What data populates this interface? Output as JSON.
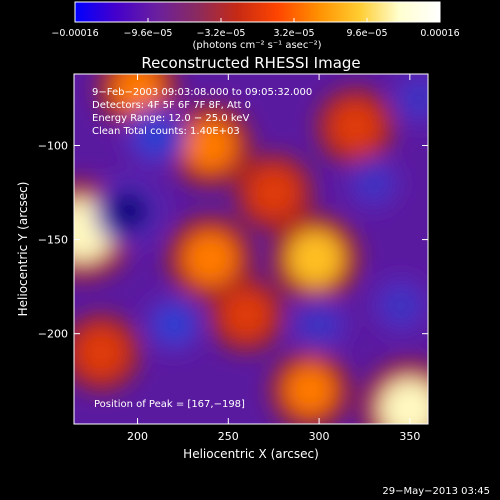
{
  "chart_data": {
    "type": "heatmap",
    "title": "Reconstructed RHESSI Image",
    "xlabel": "Heliocentric X (arcsec)",
    "ylabel": "Heliocentric Y (arcsec)",
    "xlim": [
      165,
      360
    ],
    "ylim": [
      -248,
      -62
    ],
    "x_ticks": [
      {
        "value": 200,
        "label": "200"
      },
      {
        "value": 250,
        "label": "250"
      },
      {
        "value": 300,
        "label": "300"
      },
      {
        "value": 350,
        "label": "350"
      }
    ],
    "y_ticks": [
      {
        "value": -100,
        "label": "−100"
      },
      {
        "value": -150,
        "label": "−150"
      },
      {
        "value": -200,
        "label": "−200"
      }
    ],
    "colorbar": {
      "range": [
        -0.00016,
        0.00016
      ],
      "ticks": [
        {
          "value": -0.00016,
          "label": "−0.00016"
        },
        {
          "value": -9.6e-05,
          "label": "−9.6e−05"
        },
        {
          "value": -3.2e-05,
          "label": "−3.2e−05"
        },
        {
          "value": 3.2e-05,
          "label": "3.2e−05"
        },
        {
          "value": 9.6e-05,
          "label": "9.6e−05"
        },
        {
          "value": 0.00016,
          "label": "0.00016"
        }
      ],
      "unit_label": "(photons cm⁻² s⁻¹ asec⁻²)",
      "colors": [
        "#0000ff",
        "#4400cc",
        "#6a1fa0",
        "#8a2a60",
        "#c62a14",
        "#ff4500",
        "#ff9000",
        "#ffcc30",
        "#ffffd0",
        "#ffffff"
      ]
    },
    "annotations": [
      "9−Feb−2003 09:03:08.000 to 09:05:32.000",
      "Detectors: 4F 5F 6F 7F 8F, Att 0",
      "Energy Range: 12.0 − 25.0 keV",
      "Clean    Total counts: 1.40E+03"
    ],
    "peak_text": "Position of Peak = [167,−198]",
    "peak": {
      "x": 167,
      "y": -198
    },
    "hot_spots": [
      {
        "x": 170,
        "y": -145,
        "level": 0.95
      },
      {
        "x": 350,
        "y": -240,
        "level": 0.9
      },
      {
        "x": 298,
        "y": -160,
        "level": 0.75
      },
      {
        "x": 295,
        "y": -230,
        "level": 0.6
      },
      {
        "x": 240,
        "y": -160,
        "level": 0.7
      },
      {
        "x": 240,
        "y": -100,
        "level": 0.65
      },
      {
        "x": 275,
        "y": -125,
        "level": 0.55
      },
      {
        "x": 180,
        "y": -210,
        "level": 0.55
      },
      {
        "x": 260,
        "y": -190,
        "level": 0.5
      },
      {
        "x": 320,
        "y": -90,
        "level": 0.55
      },
      {
        "x": 200,
        "y": -70,
        "level": 0.6
      }
    ],
    "cold_spots": [
      {
        "x": 195,
        "y": -135,
        "level": -0.9
      },
      {
        "x": 210,
        "y": -95,
        "level": -0.75
      },
      {
        "x": 220,
        "y": -195,
        "level": -0.65
      },
      {
        "x": 300,
        "y": -195,
        "level": -0.6
      },
      {
        "x": 345,
        "y": -185,
        "level": -0.6
      },
      {
        "x": 355,
        "y": -75,
        "level": -0.55
      },
      {
        "x": 330,
        "y": -120,
        "level": -0.5
      }
    ]
  },
  "footer": {
    "timestamp": "29−May−2013 03:45"
  }
}
